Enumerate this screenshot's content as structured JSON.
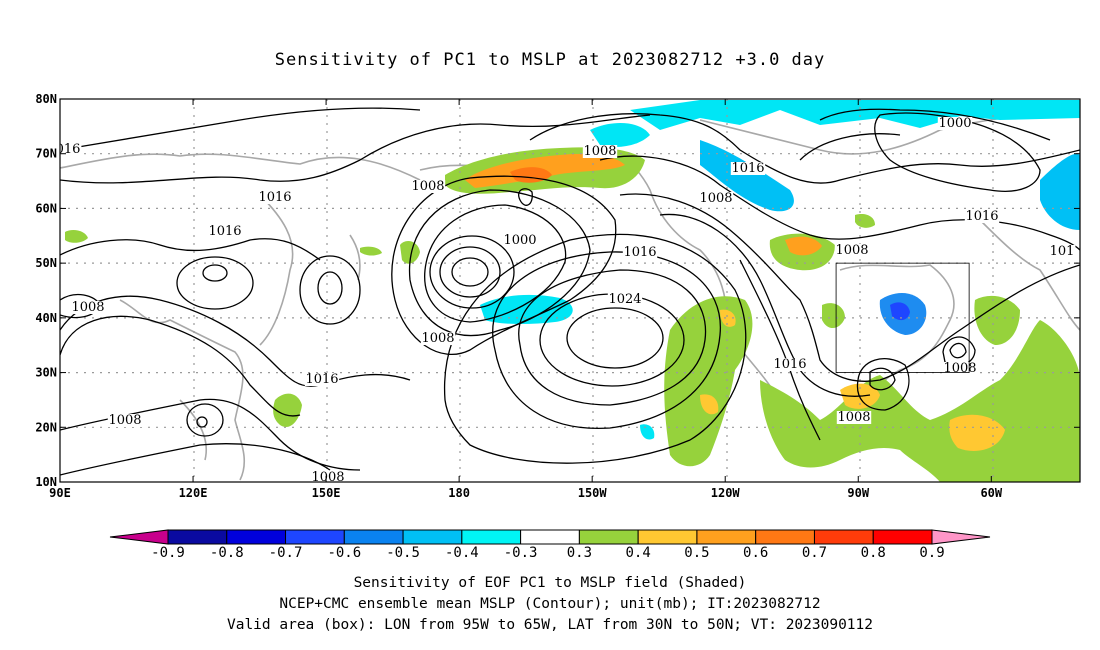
{
  "title": "Sensitivity of PC1 to MSLP at 2023082712 +3.0 day",
  "axes": {
    "lat_labels": [
      "80N",
      "70N",
      "60N",
      "50N",
      "40N",
      "30N",
      "20N",
      "10N"
    ],
    "lon_labels": [
      "90E",
      "120E",
      "150E",
      "180",
      "150W",
      "120W",
      "90W",
      "60W"
    ]
  },
  "contour_labels": [
    "016",
    "1008",
    "1016",
    "1016",
    "1008",
    "1000",
    "1008",
    "1024",
    "1016",
    "1008",
    "1008",
    "1016",
    "1008",
    "1016",
    "1000",
    "1008",
    "1016",
    "1016",
    "1008",
    "1008",
    "101",
    "1008"
  ],
  "colorbar": {
    "ticks": [
      "-0.9",
      "-0.8",
      "-0.7",
      "-0.6",
      "-0.5",
      "-0.4",
      "-0.3",
      "0.3",
      "0.4",
      "0.5",
      "0.6",
      "0.7",
      "0.8",
      "0.9"
    ],
    "colors": [
      "#c8008c",
      "#0a0aa0",
      "#0000dc",
      "#1e46ff",
      "#0a82f0",
      "#00c0f5",
      "#00f5f5",
      "#ffffff",
      "#96d23c",
      "#ffc832",
      "#ffa01e",
      "#ff7814",
      "#ff3c0a",
      "#ff0000",
      "#ff96c8"
    ]
  },
  "caption": {
    "line1": "Sensitivity of EOF PC1 to MSLP field (Shaded)",
    "line2": "NCEP+CMC ensemble mean MSLP (Contour); unit(mb); IT:2023082712",
    "line3": "Valid area (box): LON from 95W to 65W, LAT from 30N to 50N; VT: 2023090112"
  },
  "valid_area": {
    "lon_w": -95,
    "lon_e": -65,
    "lat_s": 30,
    "lat_n": 50
  }
}
